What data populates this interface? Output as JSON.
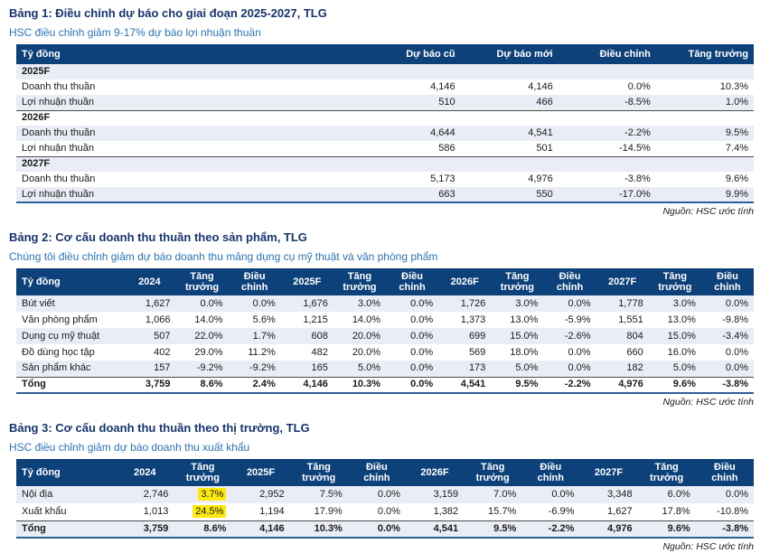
{
  "colors": {
    "header_bg": "#0d4179",
    "title_text": "#17346e",
    "subtitle_text": "#2c73b5",
    "row_stripe": "#eaedf5",
    "bottom_border": "#2e5f98",
    "separator": "#4d4d4d",
    "highlight": "#fde910"
  },
  "table1": {
    "title": "Bảng 1: Điều chỉnh dự báo cho giai đoạn 2025-2027, TLG",
    "subtitle": "HSC điều chỉnh giảm 9-17% dự báo lợi nhuận thuần",
    "columns": [
      "Tỷ đồng",
      "Dự báo cũ",
      "Dự báo mới",
      "Điều chỉnh",
      "Tăng trưởng"
    ],
    "sections": [
      {
        "label": "2025F",
        "rows": [
          [
            "Doanh thu thuần",
            "4,146",
            "4,146",
            "0.0%",
            "10.3%"
          ],
          [
            "Lợi nhuận thuần",
            "510",
            "466",
            "-8.5%",
            "1.0%"
          ]
        ]
      },
      {
        "label": "2026F",
        "rows": [
          [
            "Doanh thu thuần",
            "4,644",
            "4,541",
            "-2.2%",
            "9.5%"
          ],
          [
            "Lợi nhuận thuần",
            "586",
            "501",
            "-14.5%",
            "7.4%"
          ]
        ]
      },
      {
        "label": "2027F",
        "rows": [
          [
            "Doanh thu thuần",
            "5,173",
            "4,976",
            "-3.8%",
            "9.6%"
          ],
          [
            "Lợi nhuận thuần",
            "663",
            "550",
            "-17.0%",
            "9.9%"
          ]
        ]
      }
    ],
    "source": "Nguồn: HSC ước tính"
  },
  "table2": {
    "title": "Bảng 2: Cơ cấu doanh thu thuần theo sản phẩm, TLG",
    "subtitle": "Chúng tôi điều chỉnh giảm dự báo doanh thu mảng dụng cụ mỹ thuật và văn phòng phẩm",
    "columns": [
      "Tỷ đồng",
      "2024",
      "Tăng trưởng",
      "Điều chỉnh",
      "2025F",
      "Tăng trưởng",
      "Điều chỉnh",
      "2026F",
      "Tăng trưởng",
      "Điều chỉnh",
      "2027F",
      "Tăng trưởng",
      "Điều chỉnh"
    ],
    "rows": [
      [
        "Bút viết",
        "1,627",
        "0.0%",
        "0.0%",
        "1,676",
        "3.0%",
        "0.0%",
        "1,726",
        "3.0%",
        "0.0%",
        "1,778",
        "3.0%",
        "0.0%"
      ],
      [
        "Văn phòng phẩm",
        "1,066",
        "14.0%",
        "5.6%",
        "1,215",
        "14.0%",
        "0.0%",
        "1,373",
        "13.0%",
        "-5.9%",
        "1,551",
        "13.0%",
        "-9.8%"
      ],
      [
        "Dụng cụ mỹ thuật",
        "507",
        "22.0%",
        "1.7%",
        "608",
        "20.0%",
        "0.0%",
        "699",
        "15.0%",
        "-2.6%",
        "804",
        "15.0%",
        "-3.4%"
      ],
      [
        "Đồ dùng học tập",
        "402",
        "29.0%",
        "11.2%",
        "482",
        "20.0%",
        "0.0%",
        "569",
        "18.0%",
        "0.0%",
        "660",
        "16.0%",
        "0.0%"
      ],
      [
        "Sản phẩm khác",
        "157",
        "-9.2%",
        "-9.2%",
        "165",
        "5.0%",
        "0.0%",
        "173",
        "5.0%",
        "0.0%",
        "182",
        "5.0%",
        "0.0%"
      ]
    ],
    "total_row": [
      "Tổng",
      "3,759",
      "8.6%",
      "2.4%",
      "4,146",
      "10.3%",
      "0.0%",
      "4,541",
      "9.5%",
      "-2.2%",
      "4,976",
      "9.6%",
      "-3.8%"
    ],
    "source": "Nguồn: HSC ước tính"
  },
  "table3": {
    "title": "Bảng 3: Cơ cấu doanh thu thuần theo thị trường, TLG",
    "subtitle": "HSC điều chỉnh giảm dự báo doanh thu xuất khẩu",
    "columns": [
      "Tỷ đồng",
      "2024",
      "Tăng trưởng",
      "2025F",
      "Tăng trưởng",
      "Điều chỉnh",
      "2026F",
      "Tăng trưởng",
      "Điều chỉnh",
      "2027F",
      "Tăng trưởng",
      "Điều chỉnh"
    ],
    "rows": [
      [
        "Nội địa",
        "2,746",
        "3.7%",
        "2,952",
        "7.5%",
        "0.0%",
        "3,159",
        "7.0%",
        "0.0%",
        "3,348",
        "6.0%",
        "0.0%"
      ],
      [
        "Xuất khẩu",
        "1,013",
        "24.5%",
        "1,194",
        "17.9%",
        "0.0%",
        "1,382",
        "15.7%",
        "-6.9%",
        "1,627",
        "17.8%",
        "-10.8%"
      ]
    ],
    "highlighted_cells": [
      [
        0,
        2
      ],
      [
        1,
        2
      ]
    ],
    "total_row": [
      "Tổng",
      "3,759",
      "8.6%",
      "4,146",
      "10.3%",
      "0.0%",
      "4,541",
      "9.5%",
      "-2.2%",
      "4,976",
      "9.6%",
      "-3.8%"
    ],
    "source": "Nguồn: HSC ước tính"
  }
}
